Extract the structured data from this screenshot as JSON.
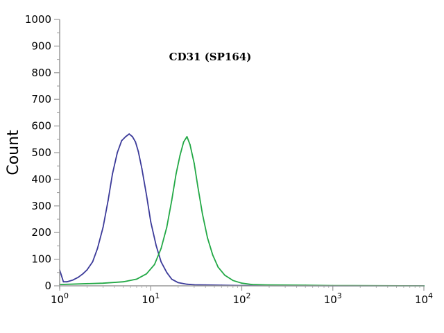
{
  "chart_data": {
    "type": "line",
    "title": "CD31 (SP164)",
    "xlabel": "",
    "ylabel": "Count",
    "xscale": "log",
    "xlim": [
      1,
      10000
    ],
    "ylim": [
      0,
      1000
    ],
    "grid": false,
    "legend": "none",
    "x_ticks": [
      {
        "value": 1,
        "base": "10",
        "exp": "0"
      },
      {
        "value": 10,
        "base": "10",
        "exp": "1"
      },
      {
        "value": 100,
        "base": "10",
        "exp": "2"
      },
      {
        "value": 1000,
        "base": "10",
        "exp": "3"
      },
      {
        "value": 10000,
        "base": "10",
        "exp": "4"
      }
    ],
    "y_ticks": [
      {
        "value": 0,
        "label": "0"
      },
      {
        "value": 100,
        "label": "100"
      },
      {
        "value": 200,
        "label": "200"
      },
      {
        "value": 300,
        "label": "300"
      },
      {
        "value": 400,
        "label": "400"
      },
      {
        "value": 500,
        "label": "500"
      },
      {
        "value": 600,
        "label": "600"
      },
      {
        "value": 700,
        "label": "700"
      },
      {
        "value": 800,
        "label": "800"
      },
      {
        "value": 900,
        "label": "900"
      },
      {
        "value": 1000,
        "label": "1000"
      }
    ],
    "series": [
      {
        "color": "#3b3a99",
        "x": [
          1.0,
          1.1,
          1.2,
          1.4,
          1.6,
          1.8,
          2.0,
          2.3,
          2.6,
          3.0,
          3.4,
          3.8,
          4.3,
          4.8,
          5.3,
          5.8,
          6.3,
          6.8,
          7.3,
          8.0,
          9.0,
          10.0,
          11.5,
          13.0,
          15.0,
          17.0,
          20.0,
          25.0,
          30.0,
          40.0,
          60.0,
          100.0,
          1000.0,
          10000.0
        ],
        "y": [
          60,
          15,
          15,
          22,
          32,
          45,
          60,
          90,
          140,
          220,
          320,
          420,
          500,
          545,
          560,
          570,
          560,
          540,
          505,
          440,
          340,
          240,
          150,
          90,
          50,
          25,
          12,
          6,
          4,
          3,
          2,
          1,
          0,
          0
        ]
      },
      {
        "color": "#22a845",
        "x": [
          1.0,
          3.0,
          5.0,
          7.0,
          9.0,
          11.0,
          13.0,
          15.0,
          17.0,
          19.0,
          21.0,
          23.0,
          25.0,
          27.0,
          30.0,
          33.0,
          37.0,
          42.0,
          48.0,
          55.0,
          65.0,
          80.0,
          100.0,
          130.0,
          200.0,
          500.0,
          1000.0,
          10000.0
        ],
        "y": [
          5,
          10,
          15,
          25,
          45,
          80,
          140,
          220,
          320,
          420,
          490,
          540,
          560,
          530,
          460,
          370,
          270,
          180,
          115,
          70,
          40,
          20,
          10,
          5,
          3,
          2,
          1,
          0
        ]
      }
    ]
  }
}
